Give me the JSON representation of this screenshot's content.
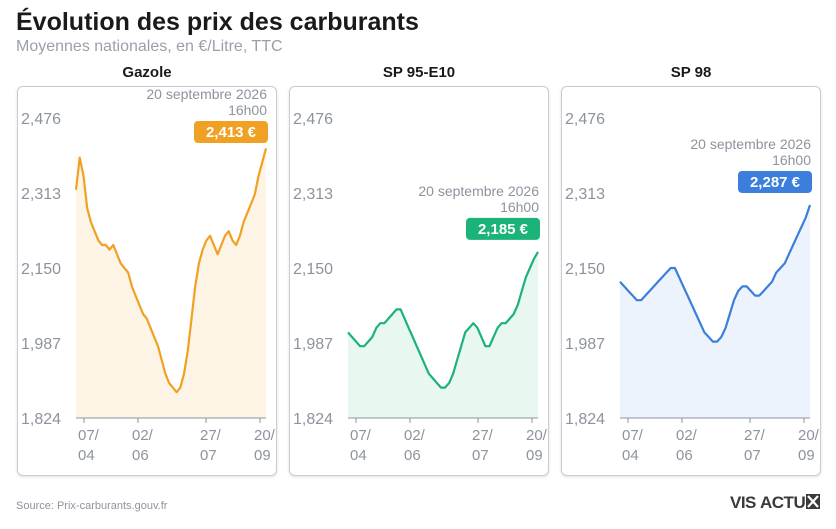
{
  "header": {
    "title": "Évolution des prix des carburants",
    "subtitle": "Moyennes nationales, en €/Litre, TTC"
  },
  "footer": {
    "source": "Source: Prix-carburants.gouv.fr",
    "logo_icon": "visactu-logo"
  },
  "chart_data": [
    {
      "type": "line",
      "title": "Gazole",
      "color": "#F0A023",
      "fill": "#FEF4E6",
      "ylim": [
        1.824,
        2.476
      ],
      "yticks": [
        "2,476",
        "2,313",
        "2,150",
        "1,987",
        "1,824"
      ],
      "xticks": [
        [
          "07/",
          "04"
        ],
        [
          "02/",
          "06"
        ],
        [
          "27/",
          "07"
        ],
        [
          "20/",
          "09"
        ]
      ],
      "annotation": {
        "date": "20 septembre 2026",
        "time": "16h00",
        "value": "2,413 €"
      },
      "y": [
        2.32,
        2.39,
        2.35,
        2.28,
        2.25,
        2.23,
        2.21,
        2.2,
        2.2,
        2.19,
        2.2,
        2.18,
        2.16,
        2.15,
        2.14,
        2.11,
        2.09,
        2.07,
        2.05,
        2.04,
        2.02,
        2.0,
        1.98,
        1.95,
        1.92,
        1.9,
        1.89,
        1.88,
        1.89,
        1.92,
        1.97,
        2.04,
        2.11,
        2.16,
        2.19,
        2.21,
        2.22,
        2.2,
        2.18,
        2.2,
        2.22,
        2.23,
        2.21,
        2.2,
        2.22,
        2.25,
        2.27,
        2.29,
        2.31,
        2.35,
        2.38,
        2.41
      ]
    },
    {
      "type": "line",
      "title": "SP 95-E10",
      "color": "#1BB37A",
      "fill": "#E8F7F0",
      "ylim": [
        1.824,
        2.476
      ],
      "yticks": [
        "2,476",
        "2,313",
        "2,150",
        "1,987",
        "1,824"
      ],
      "xticks": [
        [
          "07/",
          "04"
        ],
        [
          "02/",
          "06"
        ],
        [
          "27/",
          "07"
        ],
        [
          "20/",
          "09"
        ]
      ],
      "annotation": {
        "date": "20 septembre 2026",
        "time": "16h00",
        "value": "2,185 €"
      },
      "y": [
        2.01,
        2.0,
        1.99,
        1.98,
        1.98,
        1.99,
        2.0,
        2.02,
        2.03,
        2.03,
        2.04,
        2.05,
        2.06,
        2.06,
        2.04,
        2.02,
        2.0,
        1.98,
        1.96,
        1.94,
        1.92,
        1.91,
        1.9,
        1.89,
        1.89,
        1.9,
        1.92,
        1.95,
        1.98,
        2.01,
        2.02,
        2.03,
        2.02,
        2.0,
        1.98,
        1.98,
        2.0,
        2.02,
        2.03,
        2.03,
        2.04,
        2.05,
        2.07,
        2.1,
        2.13,
        2.15,
        2.17,
        2.185
      ]
    },
    {
      "type": "line",
      "title": "SP 98",
      "color": "#3C7EDC",
      "fill": "#EDF3FC",
      "ylim": [
        1.824,
        2.476
      ],
      "yticks": [
        "2,476",
        "2,313",
        "2,150",
        "1,987",
        "1,824"
      ],
      "xticks": [
        [
          "07/",
          "04"
        ],
        [
          "02/",
          "06"
        ],
        [
          "27/",
          "07"
        ],
        [
          "20/",
          "09"
        ]
      ],
      "annotation": {
        "date": "20 septembre 2026",
        "time": "16h00",
        "value": "2,287 €"
      },
      "y": [
        2.12,
        2.11,
        2.1,
        2.09,
        2.08,
        2.08,
        2.09,
        2.1,
        2.11,
        2.12,
        2.13,
        2.14,
        2.15,
        2.15,
        2.13,
        2.11,
        2.09,
        2.07,
        2.05,
        2.03,
        2.01,
        2.0,
        1.99,
        1.99,
        2.0,
        2.02,
        2.05,
        2.08,
        2.1,
        2.11,
        2.11,
        2.1,
        2.09,
        2.09,
        2.1,
        2.11,
        2.12,
        2.14,
        2.15,
        2.16,
        2.18,
        2.2,
        2.22,
        2.24,
        2.26,
        2.287
      ]
    }
  ]
}
